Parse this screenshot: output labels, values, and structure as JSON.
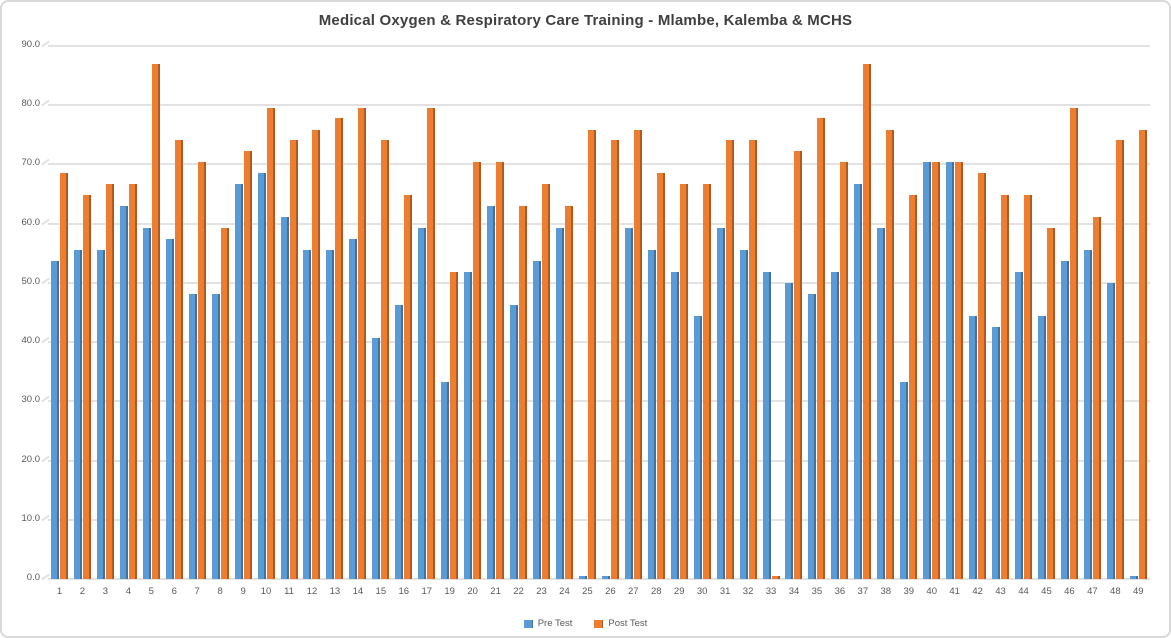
{
  "colors": {
    "pre": "#5B9BD5",
    "pre_edge": "#41719C",
    "post": "#ED7D31",
    "post_edge": "#AE5A21",
    "gridline": "#E2E2E2",
    "axis_text": "#595959",
    "title_text": "#3F3F3F"
  },
  "y_axis": {
    "tick_labels": [
      "90.0",
      "80.0",
      "70.0",
      "60.0",
      "50.0",
      "40.0",
      "30.0",
      "20.0",
      "10.0",
      "0.0"
    ]
  },
  "chart_data": {
    "type": "bar",
    "title": "Medical Oxygen & Respiratory Care Training - Mlambe, Kalemba & MCHS",
    "xlabel": "",
    "ylabel": "",
    "ylim": [
      0,
      90
    ],
    "grid": true,
    "legend_position": "bottom",
    "categories": [
      "1",
      "2",
      "3",
      "4",
      "5",
      "6",
      "7",
      "8",
      "9",
      "10",
      "11",
      "12",
      "13",
      "14",
      "15",
      "16",
      "17",
      "19",
      "20",
      "21",
      "22",
      "23",
      "24",
      "25",
      "26",
      "27",
      "28",
      "29",
      "30",
      "31",
      "32",
      "33",
      "34",
      "35",
      "36",
      "37",
      "38",
      "39",
      "40",
      "41",
      "42",
      "43",
      "44",
      "45",
      "46",
      "47",
      "48",
      "49"
    ],
    "series": [
      {
        "name": "Pre Test",
        "values": [
          53.7,
          55.6,
          55.6,
          63.0,
          59.3,
          57.4,
          48.1,
          48.1,
          66.7,
          68.5,
          61.1,
          55.6,
          55.6,
          57.4,
          40.7,
          46.3,
          59.3,
          33.3,
          51.9,
          63.0,
          46.3,
          53.7,
          59.3,
          0.5,
          0.5,
          59.3,
          55.6,
          51.9,
          44.4,
          59.3,
          55.6,
          51.9,
          50.0,
          48.1,
          51.9,
          66.7,
          59.3,
          33.3,
          70.4,
          70.4,
          44.4,
          42.6,
          51.9,
          44.4,
          53.7,
          55.6,
          50.0,
          0.5
        ]
      },
      {
        "name": "Post Test",
        "values": [
          68.5,
          64.8,
          66.7,
          66.7,
          87.0,
          74.1,
          70.4,
          59.3,
          72.2,
          79.6,
          74.1,
          75.9,
          77.8,
          79.6,
          74.1,
          64.8,
          79.6,
          51.9,
          70.4,
          70.4,
          63.0,
          66.7,
          63.0,
          75.9,
          74.1,
          75.9,
          68.5,
          66.7,
          66.7,
          74.1,
          74.1,
          0.5,
          72.2,
          77.8,
          70.4,
          87.0,
          75.9,
          64.8,
          70.4,
          70.4,
          68.5,
          64.8,
          64.8,
          59.3,
          79.6,
          61.1,
          74.1,
          75.9
        ]
      }
    ]
  }
}
